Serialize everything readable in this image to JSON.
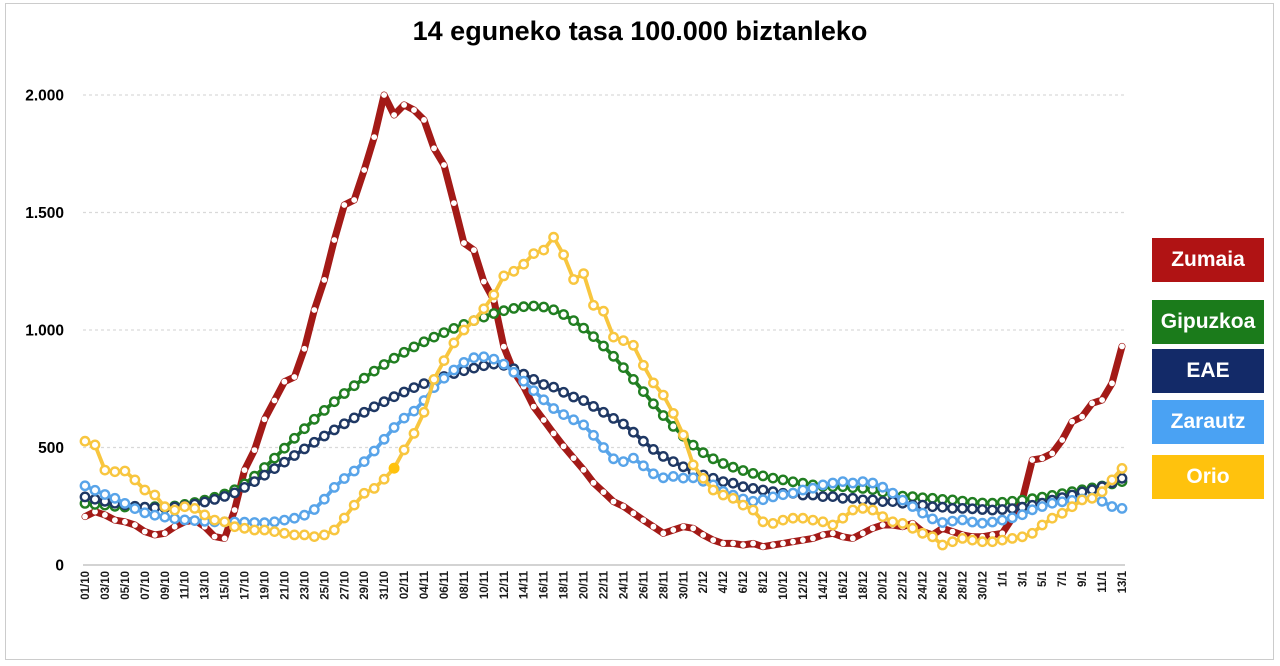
{
  "title": "14 eguneko tasa 100.000 biztanleko",
  "legend": {
    "items": [
      {
        "id": "zumaia",
        "label": "Zumaia",
        "color": "#B01314"
      },
      {
        "id": "gipuzkoa",
        "label": "Gipuzkoa",
        "color": "#1B7B1B"
      },
      {
        "id": "eae",
        "label": "EAE",
        "color": "#132A68"
      },
      {
        "id": "zarautz",
        "label": "Zarautz",
        "color": "#4AA2F3"
      },
      {
        "id": "orio",
        "label": "Orio",
        "color": "#FFC20D"
      }
    ]
  },
  "chart_data": {
    "type": "line",
    "title": "14 eguneko tasa 100.000 biztanleko",
    "xlabel": "",
    "ylabel": "",
    "ylim": [
      0,
      2000
    ],
    "grid": "horizontal-dashed",
    "legend_position": "right",
    "marker": "open-circle",
    "x_is_daily": true,
    "x_range": "01/10 - 13/1",
    "y_ticks": [
      {
        "value": 2000,
        "label": "2.000"
      },
      {
        "value": 1500,
        "label": "1.500"
      },
      {
        "value": 1000,
        "label": "1.000"
      },
      {
        "value": 500,
        "label": "500"
      },
      {
        "value": 0,
        "label": "0"
      }
    ],
    "x_tick_labels": [
      "01/10",
      "03/10",
      "05/10",
      "07/10",
      "09/10",
      "11/10",
      "13/10",
      "15/10",
      "17/10",
      "19/10",
      "21/10",
      "23/10",
      "25/10",
      "27/10",
      "29/10",
      "31/10",
      "02/11",
      "04/11",
      "06/11",
      "08/11",
      "10/11",
      "12/11",
      "14/11",
      "16/11",
      "18/11",
      "20/11",
      "22/11",
      "24/11",
      "26/11",
      "28/11",
      "30/11",
      "2/12",
      "4/12",
      "6/12",
      "8/12",
      "10/12",
      "12/12",
      "14/12",
      "16/12",
      "18/12",
      "20/12",
      "22/12",
      "24/12",
      "26/12",
      "28/12",
      "30/12",
      "1/1",
      "3/1",
      "5/1",
      "7/1",
      "9/1",
      "11/1",
      "13/1"
    ],
    "series": [
      {
        "name": "Zumaia",
        "color": "#A31A17",
        "line_width": 7,
        "values": [
          206,
          227,
          213,
          191,
          184,
          170,
          142,
          128,
          135,
          163,
          184,
          191,
          163,
          121,
          113,
          234,
          404,
          489,
          620,
          700,
          780,
          800,
          920,
          1085,
          1213,
          1383,
          1532,
          1553,
          1681,
          1821,
          2000,
          1915,
          1958,
          1936,
          1894,
          1773,
          1702,
          1540,
          1370,
          1340,
          1206,
          1128,
          929,
          823,
          759,
          674,
          617,
          560,
          505,
          455,
          405,
          350,
          310,
          270,
          250,
          220,
          191,
          163,
          135,
          149,
          163,
          156,
          128,
          106,
          92,
          92,
          85,
          92,
          78,
          85,
          92,
          99,
          106,
          113,
          128,
          135,
          120,
          113,
          135,
          156,
          170,
          170,
          163,
          177,
          142,
          128,
          156,
          142,
          128,
          120,
          120,
          128,
          135,
          199,
          277,
          447,
          454,
          475,
          532,
          610,
          631,
          688,
          702,
          773,
          930
        ]
      },
      {
        "name": "Gipuzkoa",
        "color": "#217E21",
        "line_width": 3.8,
        "values": [
          262,
          258,
          255,
          250,
          247,
          248,
          245,
          248,
          243,
          251,
          258,
          266,
          276,
          288,
          302,
          320,
          345,
          378,
          415,
          455,
          497,
          539,
          580,
          620,
          658,
          695,
          730,
          763,
          795,
          825,
          853,
          880,
          905,
          928,
          950,
          970,
          989,
          1007,
          1024,
          1040,
          1055,
          1070,
          1082,
          1092,
          1099,
          1102,
          1098,
          1086,
          1066,
          1040,
          1008,
          972,
          932,
          888,
          840,
          790,
          738,
          686,
          636,
          590,
          548,
          510,
          478,
          452,
          432,
          416,
          402,
          390,
          379,
          370,
          362,
          354,
          348,
          341,
          335,
          333,
          333,
          329,
          326,
          321,
          310,
          300,
          293,
          291,
          286,
          284,
          279,
          277,
          272,
          267,
          264,
          263,
          267,
          271,
          276,
          282,
          289,
          296,
          304,
          312,
          320,
          328,
          336,
          345,
          355
        ]
      },
      {
        "name": "EAE",
        "color": "#1F3864",
        "line_width": 3.8,
        "values": [
          290,
          280,
          271,
          263,
          256,
          250,
          246,
          244,
          244,
          247,
          252,
          259,
          268,
          279,
          292,
          307,
          330,
          355,
          382,
          410,
          438,
          466,
          494,
          522,
          549,
          575,
          601,
          626,
          650,
          673,
          695,
          716,
          736,
          755,
          772,
          788,
          802,
          815,
          827,
          838,
          848,
          855,
          850,
          835,
          812,
          790,
          768,
          757,
          735,
          715,
          700,
          675,
          650,
          624,
          600,
          565,
          527,
          492,
          462,
          440,
          418,
          397,
          383,
          369,
          355,
          348,
          333,
          326,
          319,
          312,
          305,
          305,
          298,
          298,
          291,
          291,
          284,
          284,
          277,
          277,
          270,
          270,
          263,
          255,
          255,
          248,
          246,
          241,
          241,
          239,
          236,
          234,
          236,
          240,
          246,
          254,
          263,
          276,
          287,
          298,
          311,
          320,
          333,
          350,
          369
        ]
      },
      {
        "name": "Zarautz",
        "color": "#58A4E9",
        "line_width": 3.8,
        "values": [
          337,
          318,
          300,
          284,
          262,
          240,
          222,
          212,
          204,
          197,
          192,
          189,
          186,
          184,
          184,
          183,
          182,
          181,
          180,
          184,
          191,
          199,
          212,
          236,
          280,
          330,
          368,
          400,
          440,
          485,
          535,
          585,
          625,
          655,
          700,
          755,
          795,
          830,
          862,
          882,
          886,
          876,
          855,
          820,
          782,
          742,
          703,
          666,
          640,
          618,
          596,
          552,
          500,
          452,
          440,
          455,
          422,
          388,
          371,
          377,
          370,
          371,
          356,
          341,
          313,
          297,
          281,
          271,
          278,
          290,
          299,
          306,
          319,
          327,
          341,
          349,
          355,
          349,
          355,
          349,
          331,
          306,
          276,
          249,
          221,
          196,
          181,
          187,
          192,
          183,
          178,
          183,
          191,
          201,
          214,
          235,
          249,
          263,
          269,
          275,
          281,
          285,
          271,
          249,
          241
        ]
      },
      {
        "name": "Orio",
        "color": "#F8C63F",
        "line_width": 3.8,
        "values": [
          527,
          511,
          404,
          397,
          400,
          362,
          319,
          298,
          248,
          234,
          248,
          241,
          213,
          191,
          184,
          163,
          156,
          149,
          149,
          142,
          135,
          128,
          128,
          121,
          128,
          149,
          200,
          255,
          305,
          326,
          365,
          412,
          490,
          560,
          650,
          790,
          870,
          945,
          1000,
          1040,
          1090,
          1150,
          1230,
          1250,
          1280,
          1325,
          1340,
          1395,
          1320,
          1215,
          1240,
          1105,
          1080,
          970,
          955,
          935,
          850,
          775,
          723,
          645,
          553,
          426,
          369,
          319,
          298,
          284,
          255,
          234,
          184,
          177,
          191,
          199,
          199,
          191,
          184,
          170,
          199,
          234,
          241,
          234,
          206,
          184,
          177,
          156,
          135,
          120,
          85,
          99,
          113,
          106,
          99,
          99,
          106,
          113,
          120,
          135,
          170,
          199,
          220,
          248,
          277,
          284,
          312,
          362,
          411
        ]
      }
    ],
    "special_points": [
      {
        "series": "Orio",
        "index": 31,
        "style": "filled",
        "color": "#FFC20D"
      }
    ]
  }
}
